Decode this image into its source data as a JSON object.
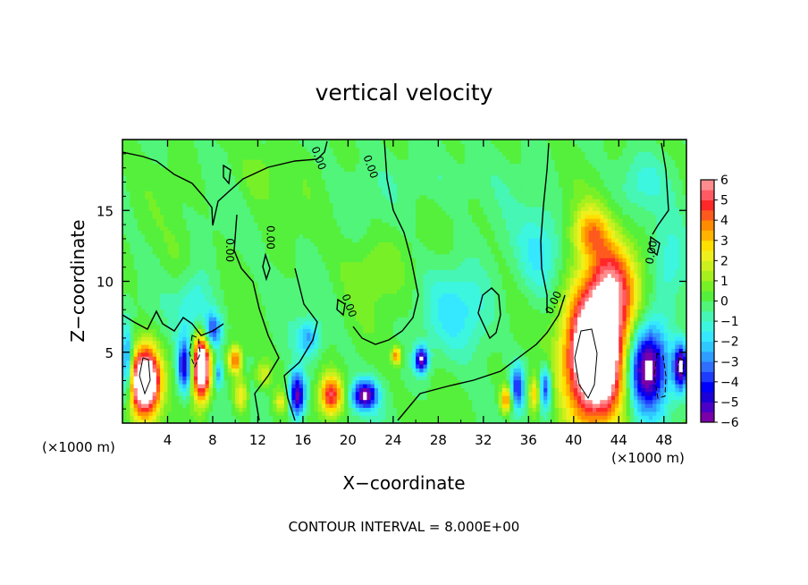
{
  "chart_data": {
    "type": "heatmap",
    "title": "vertical velocity",
    "xlabel": "X−coordinate",
    "ylabel": "Z−coordinate",
    "x_unit": "(×1000 m)",
    "xlim": [
      0,
      50
    ],
    "ylim": [
      0,
      20
    ],
    "x_ticks": [
      4,
      8,
      12,
      16,
      20,
      24,
      28,
      32,
      36,
      40,
      44,
      48
    ],
    "y_ticks": [
      5,
      10,
      15
    ],
    "colorbar": {
      "min": -6,
      "max": 6,
      "ticks": [
        6,
        5,
        4,
        3,
        2,
        1,
        0,
        -1,
        -2,
        -3,
        -4,
        -5,
        -6
      ],
      "tick_labels": [
        "6",
        "5",
        "4",
        "3",
        "2",
        "1",
        "0",
        "−1",
        "−2",
        "−3",
        "−4",
        "−5",
        "−6"
      ]
    },
    "contour_label": "0.00",
    "footer": "CONTOUR INTERVAL = 8.000E+00",
    "updrafts": [
      {
        "x": 2,
        "z": 3,
        "sx": 1.3,
        "sz": 2.3,
        "value": 10
      },
      {
        "x": 7,
        "z": 4,
        "sx": 0.8,
        "sz": 2.3,
        "value": 9
      },
      {
        "x": 42,
        "z": 5,
        "sx": 2.6,
        "sz": 4.5,
        "value": 11
      },
      {
        "x": 43.5,
        "z": 10,
        "sx": 2.2,
        "sz": 3.2,
        "value": 4
      },
      {
        "x": 41.5,
        "z": 13.5,
        "sx": 1.6,
        "sz": 1.8,
        "value": 3
      },
      {
        "x": 18.5,
        "z": 2,
        "sx": 1.0,
        "sz": 1.4,
        "value": 5
      },
      {
        "x": 10,
        "z": 4.5,
        "sx": 0.6,
        "sz": 1.0,
        "value": 4
      },
      {
        "x": 10.5,
        "z": 2,
        "sx": 0.6,
        "sz": 1.2,
        "value": 2.5
      },
      {
        "x": 12.5,
        "z": 3.5,
        "sx": 0.7,
        "sz": 0.9,
        "value": 2
      },
      {
        "x": 14,
        "z": 1.5,
        "sx": 0.6,
        "sz": 0.8,
        "value": 2
      },
      {
        "x": 24.3,
        "z": 4.8,
        "sx": 0.4,
        "sz": 0.6,
        "value": 4
      },
      {
        "x": 34,
        "z": 1.7,
        "sx": 0.5,
        "sz": 1.0,
        "value": 4
      },
      {
        "x": 36.5,
        "z": 2,
        "sx": 0.5,
        "sz": 1.4,
        "value": 3
      },
      {
        "x": 22.5,
        "z": 11,
        "sx": 3.0,
        "sz": 2.5,
        "value": 0.8
      },
      {
        "x": 12,
        "z": 17.5,
        "sx": 2.0,
        "sz": 2.0,
        "value": 0.8
      },
      {
        "x": 5,
        "z": 12,
        "sx": 1.5,
        "sz": 2.0,
        "value": 0.4
      }
    ],
    "downdrafts": [
      {
        "x": 0.4,
        "z": 4,
        "sx": 0.5,
        "sz": 2.5,
        "value": -4
      },
      {
        "x": 5.5,
        "z": 4,
        "sx": 0.6,
        "sz": 1.8,
        "value": -5
      },
      {
        "x": 8,
        "z": 6.5,
        "sx": 0.8,
        "sz": 1.3,
        "value": -4
      },
      {
        "x": 8.5,
        "z": 3.5,
        "sx": 0.4,
        "sz": 1.0,
        "value": -3
      },
      {
        "x": 15.5,
        "z": 2,
        "sx": 0.7,
        "sz": 1.6,
        "value": -6
      },
      {
        "x": 21.5,
        "z": 2,
        "sx": 1.1,
        "sz": 1.0,
        "value": -6
      },
      {
        "x": 26.5,
        "z": 4.5,
        "sx": 0.6,
        "sz": 0.9,
        "value": -6
      },
      {
        "x": 46.5,
        "z": 4,
        "sx": 1.8,
        "sz": 3.0,
        "value": -7
      },
      {
        "x": 49.5,
        "z": 4,
        "sx": 0.6,
        "sz": 1.6,
        "value": -6
      },
      {
        "x": 35,
        "z": 2.5,
        "sx": 0.6,
        "sz": 1.5,
        "value": -4
      },
      {
        "x": 37.5,
        "z": 2.5,
        "sx": 0.5,
        "sz": 1.5,
        "value": -4
      },
      {
        "x": 16.5,
        "z": 6,
        "sx": 1.0,
        "sz": 1.2,
        "value": -2.5
      },
      {
        "x": 6.5,
        "z": 8,
        "sx": 1.5,
        "sz": 2.5,
        "value": -1.8
      },
      {
        "x": 30,
        "z": 8,
        "sx": 3.0,
        "sz": 3.0,
        "value": -1.6
      },
      {
        "x": 37,
        "z": 12,
        "sx": 2.0,
        "sz": 3.0,
        "value": -1.7
      },
      {
        "x": 48.5,
        "z": 11,
        "sx": 1.5,
        "sz": 3.0,
        "value": -1.5
      },
      {
        "x": 46,
        "z": 17,
        "sx": 2.0,
        "sz": 2.0,
        "value": -1.0
      },
      {
        "x": 28,
        "z": 17,
        "sx": 4.0,
        "sz": 2.0,
        "value": -0.6
      }
    ]
  }
}
